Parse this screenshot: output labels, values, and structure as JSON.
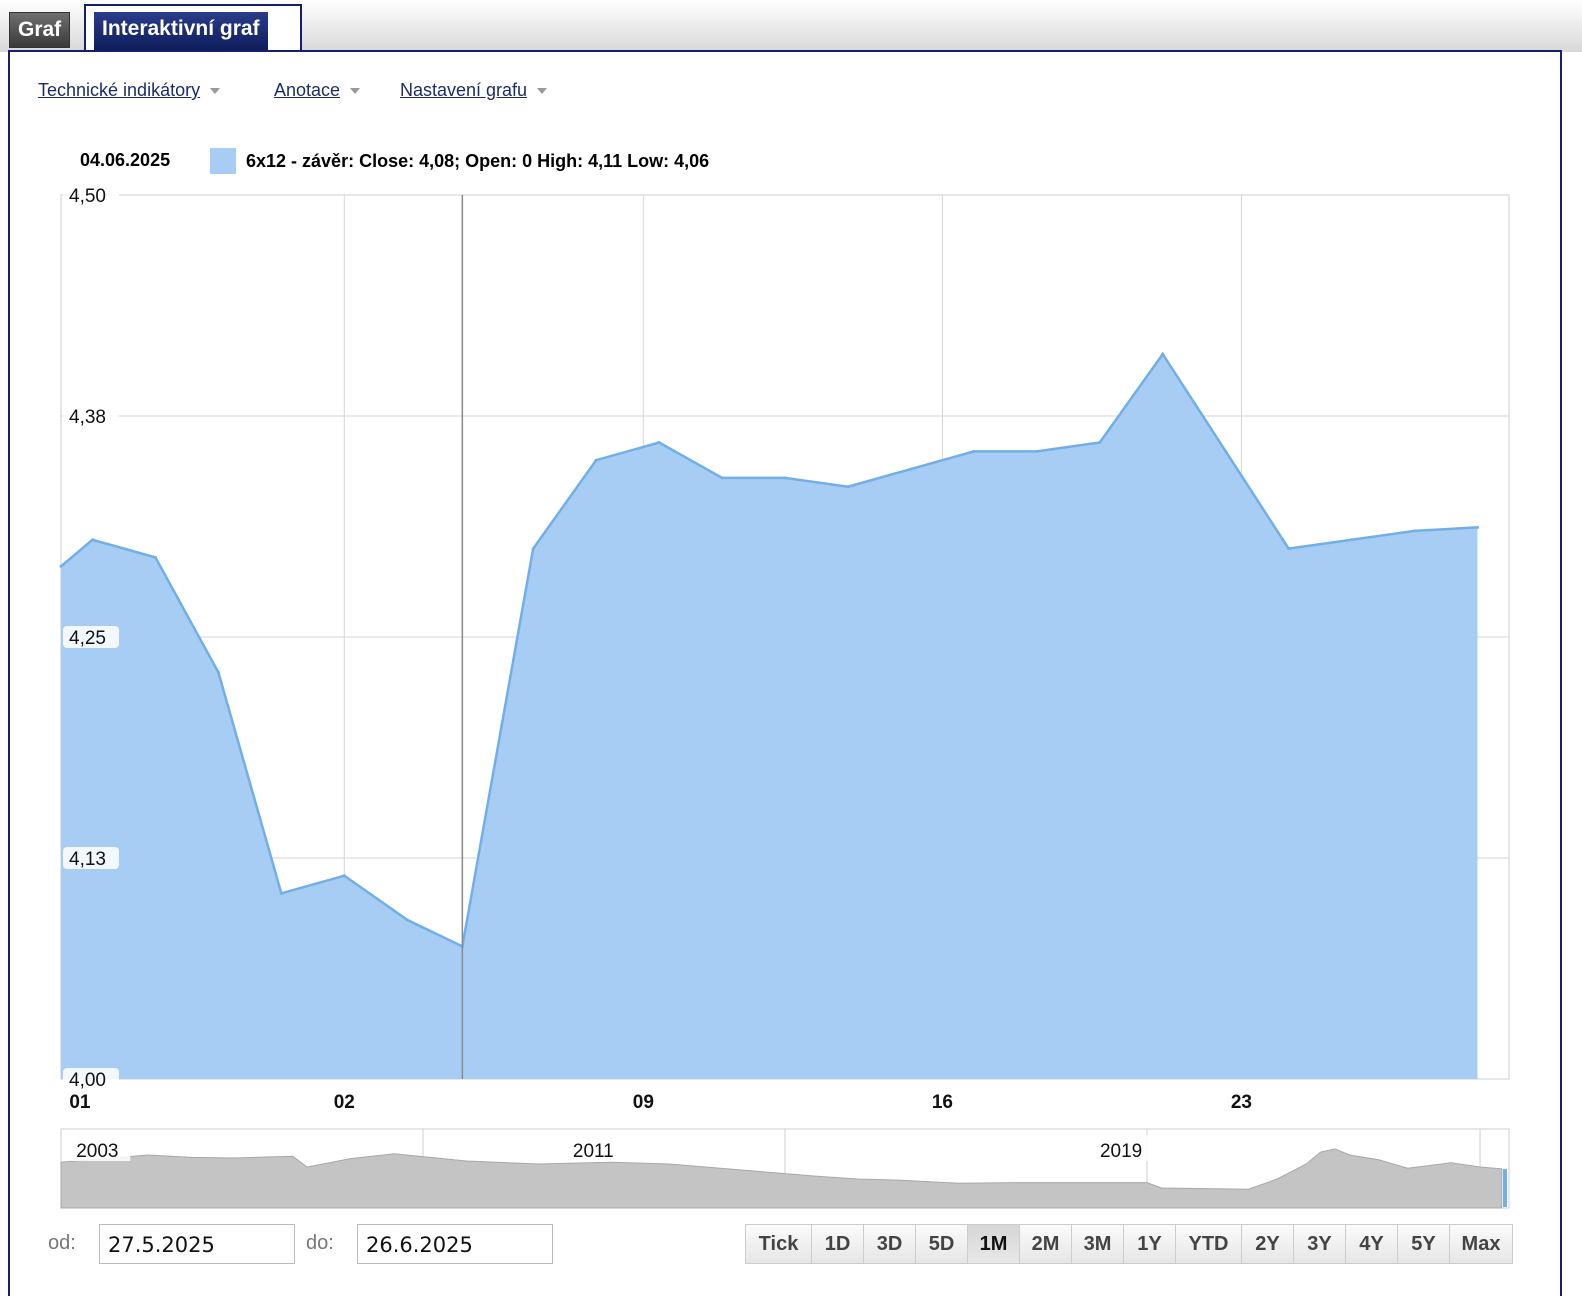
{
  "tabs": [
    {
      "label": "Graf"
    },
    {
      "label": "Interaktivní graf"
    }
  ],
  "menu": {
    "indicators": "Technické indikátory",
    "annotations": "Anotace",
    "settings": "Nastavení grafu"
  },
  "legend": {
    "date": "04.06.2025",
    "series_text": "6x12 - závěr: Close: 4,08; Open: 0 High: 4,11 Low: 4,06",
    "color": "#a8cdf5"
  },
  "chart_data": {
    "type": "area",
    "ylim": [
      4.0,
      4.5
    ],
    "y_ticks": [
      "4,50",
      "4,38",
      "4,25",
      "4,13",
      "4,00"
    ],
    "y_tick_values": [
      4.5,
      4.375,
      4.25,
      4.125,
      4.0
    ],
    "x_tick_labels": [
      "01",
      "02",
      "09",
      "16",
      "23"
    ],
    "x_tick_indices": [
      0.6,
      9.0,
      18.5,
      28.0,
      37.5
    ],
    "selected_index": 12.75,
    "series": [
      {
        "values": [
          4.29,
          4.305,
          4.295,
          4.23,
          4.105,
          4.115,
          4.09,
          4.075,
          4.2,
          4.3,
          4.35,
          4.36,
          4.34,
          4.34,
          4.335,
          4.345,
          4.355,
          4.355,
          4.36,
          4.41,
          4.355,
          4.3,
          4.305,
          4.31,
          4.312
        ]
      }
    ],
    "series_x_indices": [
      0,
      1,
      3,
      5,
      7,
      9,
      11,
      12.75,
      14,
      15,
      17,
      19,
      21,
      23,
      25,
      27,
      29,
      31,
      33,
      35,
      37,
      39,
      41,
      43,
      45
    ]
  },
  "navigator": {
    "year_labels": [
      "2003",
      "2011",
      "2019"
    ]
  },
  "range": {
    "from_label": "od:",
    "from_value": "27.5.2025",
    "to_label": "do:",
    "to_value": "26.6.2025"
  },
  "zoom_buttons": [
    "Tick",
    "1D",
    "3D",
    "5D",
    "1M",
    "2M",
    "3M",
    "1Y",
    "YTD",
    "2Y",
    "3Y",
    "4Y",
    "5Y",
    "Max"
  ],
  "zoom_active": "1M"
}
